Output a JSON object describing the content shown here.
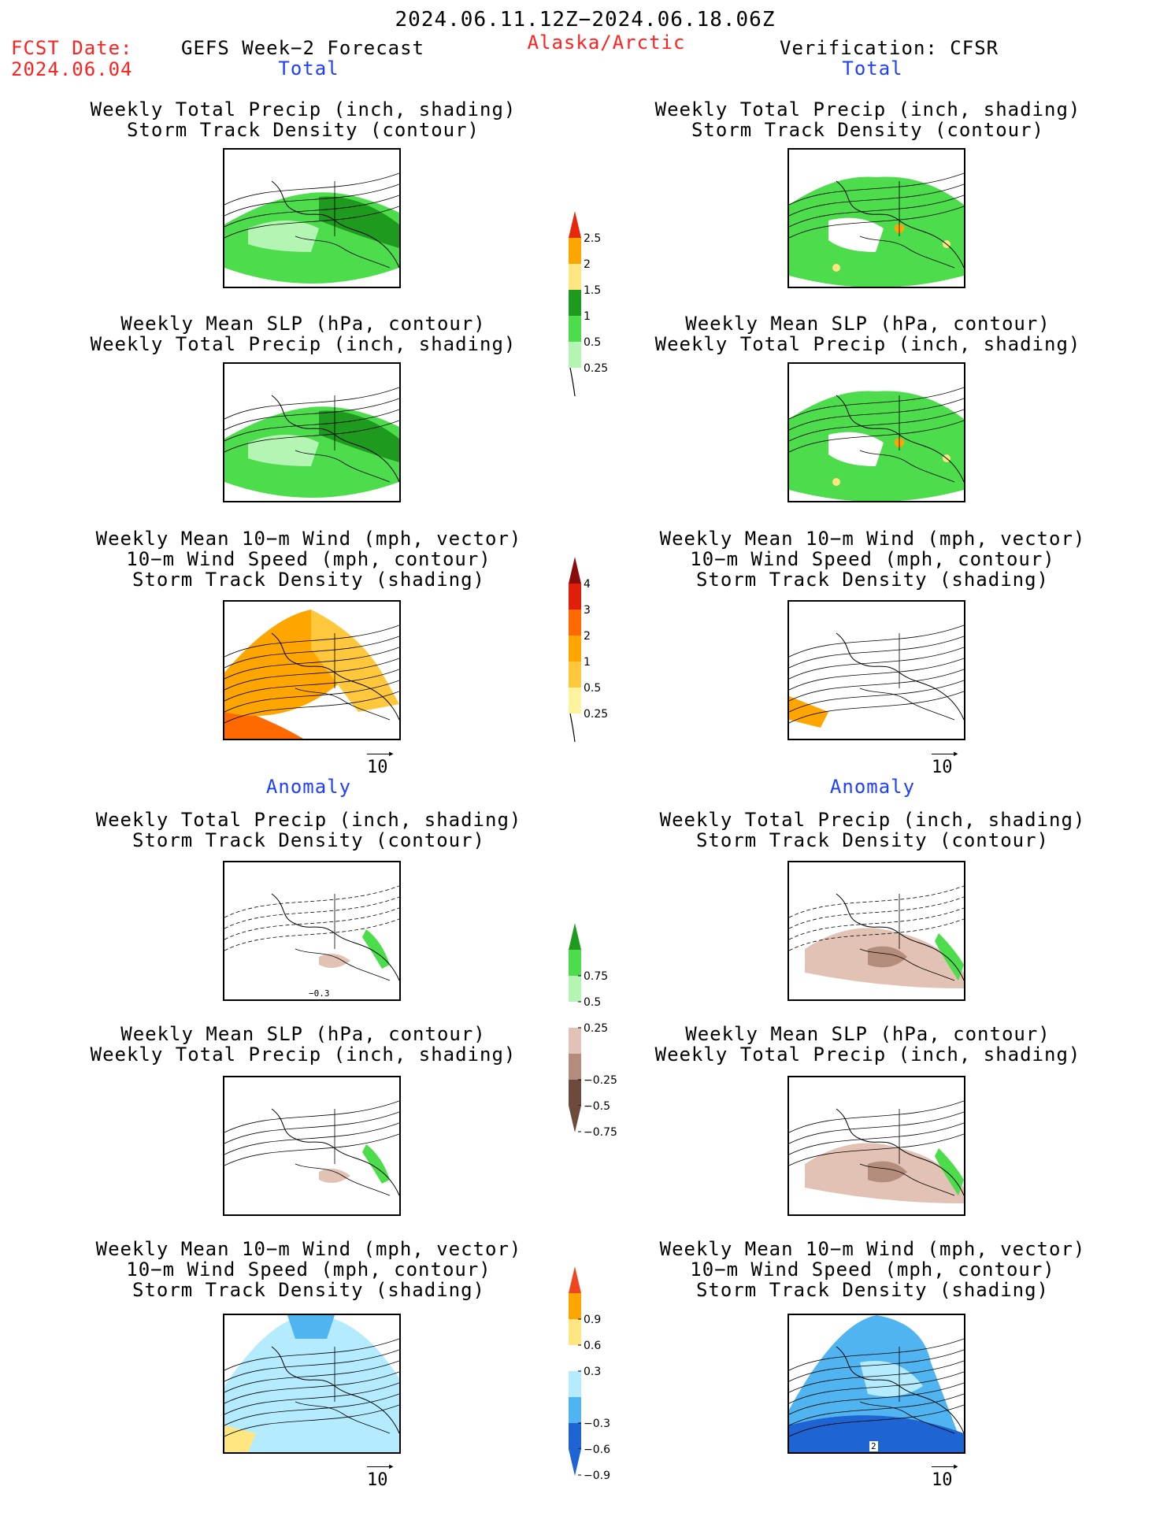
{
  "header": {
    "date_range": "2024.06.11.12Z−2024.06.18.06Z",
    "fcst_label": "FCST Date:",
    "fcst_date": "2024.06.04",
    "model": "GEFS Week−2 Forecast",
    "region": "Alaska/Arctic",
    "verification": "Verification: CFSR"
  },
  "sections": {
    "total": "Total",
    "anomaly": "Anomaly"
  },
  "panel_titles": {
    "precip_track": [
      "Weekly Total Precip (inch, shading)",
      "Storm Track Density (contour)"
    ],
    "slp_precip": [
      "Weekly Mean SLP (hPa, contour)",
      "Weekly Total Precip (inch, shading)"
    ],
    "wind_track": [
      "Weekly Mean 10−m Wind (mph, vector)",
      "10−m Wind Speed (mph, contour)",
      "Storm Track Density (shading)"
    ]
  },
  "vector_key": "10",
  "map_labels": {
    "anom_precip_contour": "−0.3",
    "anom_wind_contour": "2"
  },
  "colorbars": {
    "precip_total": {
      "labels": [
        "2.5",
        "2",
        "1.5",
        "1",
        "0.5",
        "0.25"
      ],
      "colors": [
        "#e8260a",
        "#ffa500",
        "#ffe680",
        "#1e9a1e",
        "#4cdc4c",
        "#b4f5b4"
      ]
    },
    "track_total": {
      "labels": [
        "4",
        "3",
        "2",
        "1",
        "0.5",
        "0.25"
      ],
      "colors": [
        "#8b0a0a",
        "#e01e0a",
        "#ff6a00",
        "#ffa500",
        "#ffc83c",
        "#fff3a0"
      ]
    },
    "precip_anom": {
      "labels": [
        "0.75",
        "0.5",
        "0.25",
        "−0.25",
        "−0.5",
        "−0.75"
      ],
      "colors": [
        "#1e9a1e",
        "#4cdc4c",
        "#b4f5b4",
        "#ffffff",
        "#e2c2b4",
        "#b48c7c",
        "#6e4a3c"
      ]
    },
    "track_anom": {
      "labels": [
        "0.9",
        "0.6",
        "0.3",
        "−0.3",
        "−0.6",
        "−0.9"
      ],
      "colors": [
        "#f0461e",
        "#ffa500",
        "#ffe680",
        "#ffffff",
        "#b4ebff",
        "#50b4f0",
        "#1e64d2"
      ]
    }
  }
}
